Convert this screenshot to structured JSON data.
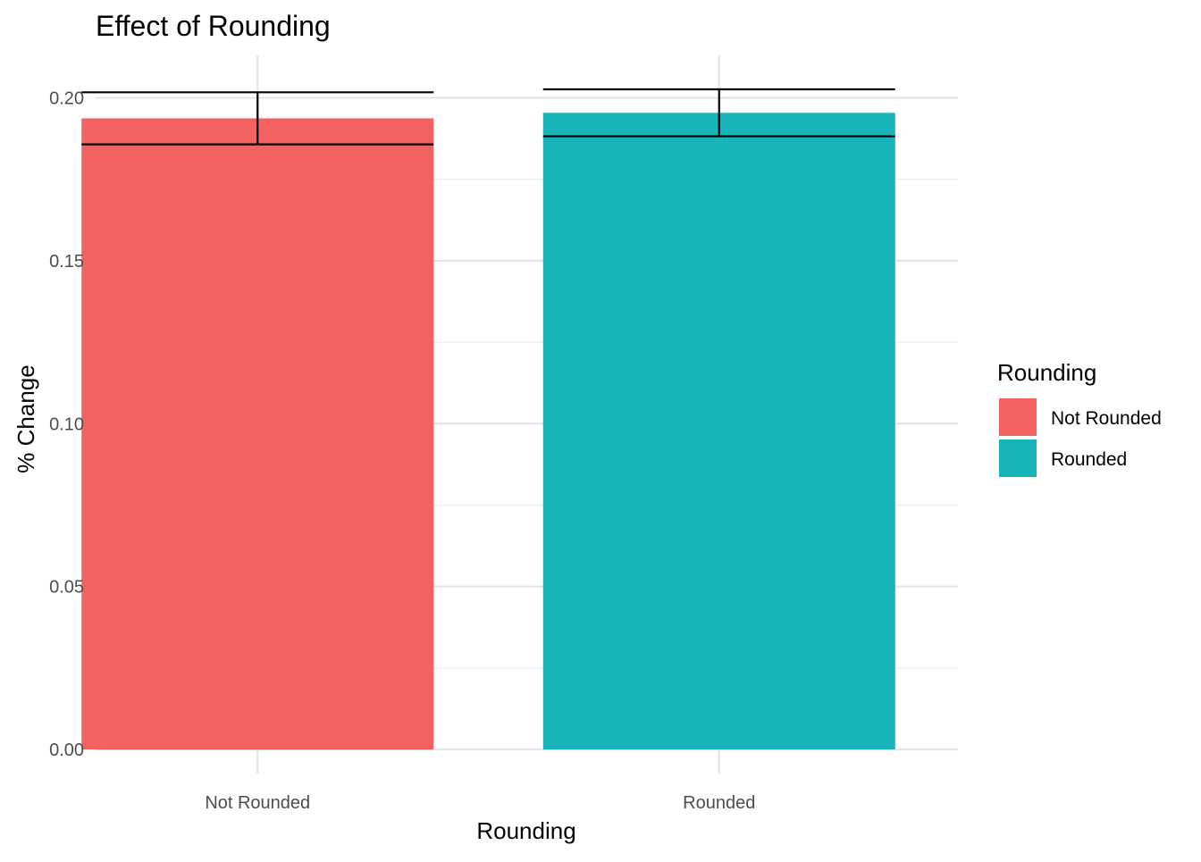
{
  "chart_data": {
    "type": "bar",
    "title": "Effect of Rounding",
    "xlabel": "Rounding",
    "ylabel": "% Change",
    "categories": [
      "Not Rounded",
      "Rounded"
    ],
    "values": [
      0.1937,
      0.1954
    ],
    "error_bars": [
      {
        "category": "Not Rounded",
        "low": 0.1857,
        "high": 0.2017
      },
      {
        "category": "Rounded",
        "low": 0.1882,
        "high": 0.2026
      }
    ],
    "colors": [
      "#F36260",
      "#19B4B8"
    ],
    "ylim": [
      0,
      0.2128
    ],
    "yticks": [
      0.0,
      0.05,
      0.1,
      0.15,
      0.2
    ],
    "ytick_labels": [
      "0.00",
      "0.05",
      "0.10",
      "0.15",
      "0.20"
    ],
    "grid": true,
    "legend": {
      "title": "Rounding",
      "position": "right",
      "entries": [
        "Not Rounded",
        "Rounded"
      ]
    }
  }
}
